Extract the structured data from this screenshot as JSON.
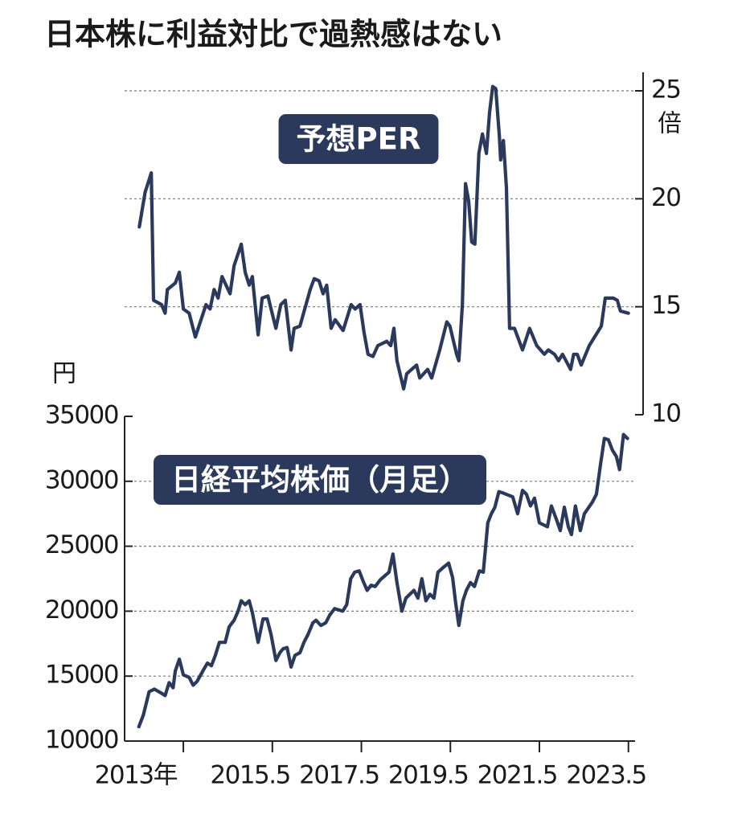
{
  "title": "日本株に利益対比で過熱感はない",
  "chart_data": [
    {
      "type": "line",
      "x": [
        2013.01,
        2013.14,
        2013.28,
        2013.33,
        2013.51,
        2013.59,
        2013.64,
        2013.82,
        2013.91,
        2014.0,
        2014.13,
        2014.27,
        2014.51,
        2014.6,
        2014.69,
        2014.78,
        2014.87,
        2015.05,
        2015.14,
        2015.3,
        2015.39,
        2015.48,
        2015.55,
        2015.68,
        2015.77,
        2015.9,
        2015.97,
        2016.08,
        2016.19,
        2016.29,
        2016.42,
        2016.49,
        2016.62,
        2016.85,
        2016.94,
        2017.05,
        2017.14,
        2017.22,
        2017.32,
        2017.41,
        2017.59,
        2017.77,
        2017.86,
        2017.97,
        2018.06,
        2018.15,
        2018.26,
        2018.37,
        2018.57,
        2018.66,
        2018.73,
        2018.8,
        2018.95,
        2019.02,
        2019.24,
        2019.31,
        2019.49,
        2019.58,
        2019.76,
        2019.92,
        2019.99,
        2020.14,
        2020.19,
        2020.27,
        2020.34,
        2020.41,
        2020.48,
        2020.55,
        2020.64,
        2020.72,
        2020.81,
        2020.88,
        2020.95,
        2021.02,
        2021.1,
        2021.13,
        2021.19,
        2021.26,
        2021.33,
        2021.44,
        2021.62,
        2021.78,
        2021.94,
        2022.11,
        2022.2,
        2022.34,
        2022.43,
        2022.52,
        2022.7,
        2022.77,
        2022.85,
        2022.94,
        2023.12,
        2023.3,
        2023.39,
        2023.48,
        2023.66,
        2023.75,
        2023.82,
        2024.0
      ],
      "series": [
        {
          "name": "予想PER",
          "color": "#2b3a5c",
          "values": [
            18.7,
            20.3,
            21.2,
            15.3,
            15.1,
            14.7,
            15.8,
            16.1,
            16.6,
            14.9,
            14.7,
            13.6,
            15.1,
            14.9,
            15.8,
            15.4,
            16.4,
            15.6,
            16.9,
            17.9,
            16.6,
            16.0,
            16.4,
            13.7,
            15.4,
            15.5,
            14.9,
            14.0,
            15.1,
            15.3,
            13.0,
            14.0,
            14.1,
            15.8,
            16.3,
            16.2,
            15.6,
            16.0,
            14.0,
            14.4,
            13.9,
            15.1,
            14.9,
            15.1,
            13.8,
            12.8,
            12.7,
            13.2,
            13.4,
            13.2,
            14.0,
            12.5,
            11.2,
            11.9,
            12.3,
            11.7,
            12.1,
            11.7,
            13.0,
            14.3,
            14.1,
            12.8,
            12.5,
            15.1,
            20.7,
            19.9,
            18.0,
            17.9,
            22.1,
            23.0,
            22.1,
            24.0,
            25.2,
            25.1,
            22.9,
            21.8,
            22.7,
            20.5,
            14.0,
            14.0,
            13.0,
            14.0,
            13.2,
            12.8,
            13.0,
            12.8,
            12.5,
            12.8,
            12.1,
            12.8,
            12.8,
            12.3,
            13.2,
            13.8,
            14.1,
            15.4,
            15.4,
            15.3,
            14.8,
            14.7
          ]
        }
      ],
      "xlim": [
        2012.68,
        2024.33
      ],
      "ylim": [
        10,
        25
      ],
      "yticks": [
        10,
        15,
        20,
        25
      ],
      "y_unit": "倍",
      "y_axis_side": "right",
      "grid": true
    },
    {
      "type": "line",
      "x": [
        2013.0,
        2013.1,
        2013.23,
        2013.35,
        2013.5,
        2013.59,
        2013.68,
        2013.77,
        2013.82,
        2013.91,
        2014.0,
        2014.13,
        2014.22,
        2014.31,
        2014.44,
        2014.54,
        2014.63,
        2014.72,
        2014.81,
        2014.94,
        2015.03,
        2015.14,
        2015.23,
        2015.3,
        2015.39,
        2015.48,
        2015.55,
        2015.68,
        2015.79,
        2015.88,
        2015.97,
        2016.08,
        2016.17,
        2016.24,
        2016.33,
        2016.42,
        2016.51,
        2016.62,
        2016.71,
        2016.8,
        2016.91,
        2016.98,
        2017.09,
        2017.2,
        2017.29,
        2017.4,
        2017.58,
        2017.67,
        2017.76,
        2017.85,
        2017.95,
        2018.04,
        2018.13,
        2018.22,
        2018.31,
        2018.42,
        2018.62,
        2018.71,
        2018.8,
        2018.91,
        2019.0,
        2019.18,
        2019.27,
        2019.36,
        2019.45,
        2019.54,
        2019.63,
        2019.72,
        2019.85,
        2019.96,
        2020.05,
        2020.12,
        2020.19,
        2020.28,
        2020.36,
        2020.45,
        2020.54,
        2020.65,
        2020.74,
        2020.84,
        2020.92,
        2021.0,
        2021.09,
        2021.18,
        2021.4,
        2021.51,
        2021.62,
        2021.71,
        2021.8,
        2021.89,
        2022.0,
        2022.18,
        2022.27,
        2022.38,
        2022.47,
        2022.56,
        2022.65,
        2022.72,
        2022.81,
        2022.92,
        2023.01,
        2023.19,
        2023.28,
        2023.37,
        2023.46,
        2023.55,
        2023.64,
        2023.73,
        2023.8,
        2023.89,
        2023.98
      ],
      "series": [
        {
          "name": "日経平均株価（月足）",
          "color": "#2b3a5c",
          "values": [
            11100,
            12000,
            13800,
            14000,
            13700,
            13500,
            14500,
            14100,
            15400,
            16300,
            15100,
            14900,
            14300,
            14600,
            15400,
            16000,
            15800,
            16600,
            17600,
            17600,
            18800,
            19300,
            20000,
            20800,
            20500,
            20800,
            19900,
            17600,
            19400,
            19400,
            18200,
            16200,
            16800,
            17100,
            17200,
            15700,
            16600,
            16800,
            17600,
            18200,
            19100,
            19300,
            18900,
            19100,
            19700,
            20200,
            20000,
            20500,
            22500,
            23000,
            23100,
            22300,
            21600,
            22000,
            21900,
            22400,
            23000,
            24400,
            22200,
            20000,
            21000,
            21600,
            21000,
            22500,
            20800,
            21300,
            21000,
            23000,
            23400,
            23700,
            22600,
            20600,
            18900,
            20800,
            21600,
            22200,
            21900,
            23100,
            23000,
            26800,
            27500,
            28000,
            29200,
            29100,
            28800,
            27500,
            29300,
            29000,
            28100,
            28700,
            26800,
            26500,
            28100,
            27100,
            26200,
            28000,
            26500,
            25900,
            28100,
            26200,
            27500,
            28400,
            29000,
            31200,
            33300,
            33200,
            32400,
            31900,
            30900,
            33600,
            33300
          ]
        }
      ],
      "xlim": [
        2012.68,
        2024.33
      ],
      "xticks": [
        {
          "value": 2013.5,
          "label": "2013年"
        },
        2015.5,
        2017.5,
        2019.5,
        2021.5,
        2023.5
      ],
      "xtick_marks": [
        2014,
        2016,
        2018,
        2020,
        2022,
        2024
      ],
      "ylim": [
        10000,
        35000
      ],
      "yticks": [
        10000,
        15000,
        20000,
        25000,
        30000,
        35000
      ],
      "y_unit": "円",
      "y_axis_side": "left",
      "grid": true
    }
  ]
}
